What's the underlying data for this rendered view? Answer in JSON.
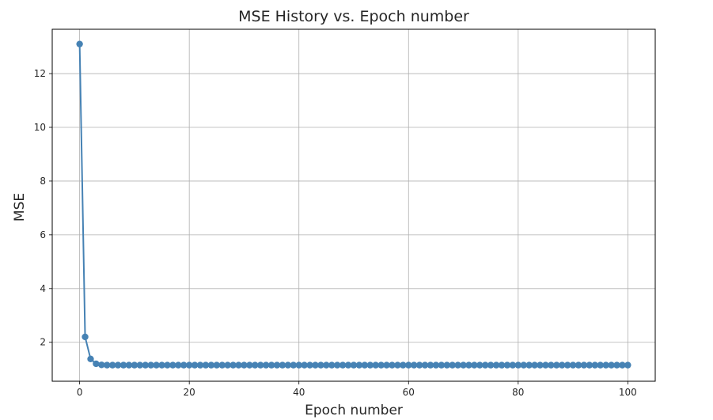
{
  "chart_data": {
    "type": "line",
    "title": "MSE History vs. Epoch number",
    "xlabel": "Epoch number",
    "ylabel": "MSE",
    "xlim": [
      -5,
      105
    ],
    "ylim": [
      0.55,
      13.65
    ],
    "xticks": [
      0,
      20,
      40,
      60,
      80,
      100
    ],
    "yticks": [
      2,
      4,
      6,
      8,
      10,
      12
    ],
    "grid": true,
    "legend": "none",
    "color": "#4682b4",
    "marker": "circle",
    "series": [
      {
        "x": [
          0,
          1,
          2,
          3,
          4,
          5,
          6,
          7,
          8,
          9,
          10,
          11,
          12,
          13,
          14,
          15,
          16,
          17,
          18,
          19,
          20,
          21,
          22,
          23,
          24,
          25,
          26,
          27,
          28,
          29,
          30,
          31,
          32,
          33,
          34,
          35,
          36,
          37,
          38,
          39,
          40,
          41,
          42,
          43,
          44,
          45,
          46,
          47,
          48,
          49,
          50,
          51,
          52,
          53,
          54,
          55,
          56,
          57,
          58,
          59,
          60,
          61,
          62,
          63,
          64,
          65,
          66,
          67,
          68,
          69,
          70,
          71,
          72,
          73,
          74,
          75,
          76,
          77,
          78,
          79,
          80,
          81,
          82,
          83,
          84,
          85,
          86,
          87,
          88,
          89,
          90,
          91,
          92,
          93,
          94,
          95,
          96,
          97,
          98,
          99,
          100
        ],
        "values": [
          13.1,
          2.2,
          1.38,
          1.2,
          1.16,
          1.15,
          1.15,
          1.15,
          1.15,
          1.15,
          1.15,
          1.15,
          1.15,
          1.15,
          1.15,
          1.15,
          1.15,
          1.15,
          1.15,
          1.15,
          1.15,
          1.15,
          1.15,
          1.15,
          1.15,
          1.15,
          1.15,
          1.15,
          1.15,
          1.15,
          1.15,
          1.15,
          1.15,
          1.15,
          1.15,
          1.15,
          1.15,
          1.15,
          1.15,
          1.15,
          1.15,
          1.15,
          1.15,
          1.15,
          1.15,
          1.15,
          1.15,
          1.15,
          1.15,
          1.15,
          1.15,
          1.15,
          1.15,
          1.15,
          1.15,
          1.15,
          1.15,
          1.15,
          1.15,
          1.15,
          1.15,
          1.15,
          1.15,
          1.15,
          1.15,
          1.15,
          1.15,
          1.15,
          1.15,
          1.15,
          1.15,
          1.15,
          1.15,
          1.15,
          1.15,
          1.15,
          1.15,
          1.15,
          1.15,
          1.15,
          1.15,
          1.15,
          1.15,
          1.15,
          1.15,
          1.15,
          1.15,
          1.15,
          1.15,
          1.15,
          1.15,
          1.15,
          1.15,
          1.15,
          1.15,
          1.15,
          1.15,
          1.15,
          1.15,
          1.15,
          1.15
        ]
      }
    ]
  }
}
